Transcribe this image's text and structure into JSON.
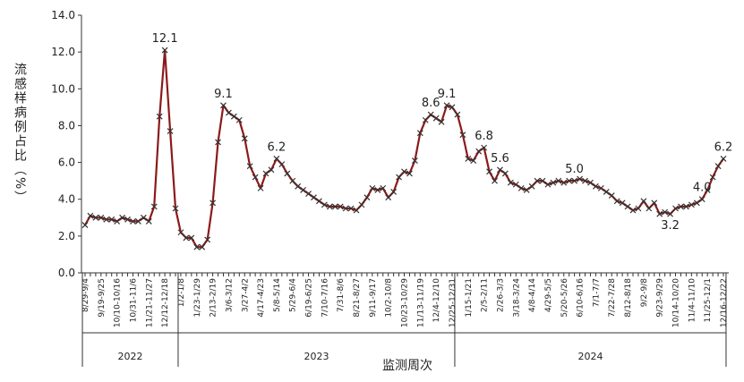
{
  "chart_data": {
    "type": "line",
    "y_label": "流感样病例占比（%）",
    "x_label": "监测周次",
    "ylim": [
      0,
      14
    ],
    "yticks": [
      {
        "value": 0,
        "label": "0.0"
      },
      {
        "value": 2,
        "label": "2.0"
      },
      {
        "value": 4,
        "label": "4.0"
      },
      {
        "value": 6,
        "label": "6.0"
      },
      {
        "value": 8,
        "label": "8.0"
      },
      {
        "value": 10,
        "label": "10.0"
      },
      {
        "value": 12,
        "label": "12.0"
      },
      {
        "value": 14,
        "label": "14.0"
      }
    ],
    "categories": [
      "8/29-9/4",
      null,
      null,
      "9/19-9/25",
      null,
      null,
      "10/10-10/16",
      null,
      null,
      "10/31-11/6",
      null,
      null,
      "11/21-11/27",
      null,
      null,
      "12/12-12/18",
      null,
      null,
      "1/2-1/8",
      null,
      null,
      "1/23-1/29",
      null,
      null,
      "2/13-2/19",
      null,
      null,
      "3/6-3/12",
      null,
      null,
      "3/27-4/2",
      null,
      null,
      "4/17-4/23",
      null,
      null,
      "5/8-5/14",
      null,
      null,
      "5/29-6/4",
      null,
      null,
      "6/19-6/25",
      null,
      null,
      "7/10-7/16",
      null,
      null,
      "7/31-8/6",
      null,
      null,
      "8/21-8/27",
      null,
      null,
      "9/11-9/17",
      null,
      null,
      "10/2-10/8",
      null,
      null,
      "10/23-10/29",
      null,
      null,
      "11/13-11/19",
      null,
      null,
      "12/4-12/10",
      null,
      null,
      "12/25-12/31",
      null,
      null,
      "1/15-1/21",
      null,
      null,
      "2/5-2/11",
      null,
      null,
      "2/26-3/3",
      null,
      null,
      "3/18-3/24",
      null,
      null,
      "4/8-4/14",
      null,
      null,
      "4/29-5/5",
      null,
      null,
      "5/20-5/26",
      null,
      null,
      "6/10-6/16",
      null,
      null,
      "7/1-7/7",
      null,
      null,
      "7/22-7/28",
      null,
      null,
      "8/12-8/18",
      null,
      null,
      "9/2-9/8",
      null,
      null,
      "9/23-9/29",
      null,
      null,
      "10/14-10/20",
      null,
      null,
      "11/4-11/10",
      null,
      null,
      "11/25-12/1",
      null,
      null,
      "12/16-12/22"
    ],
    "year_groups": [
      {
        "label": "2022",
        "weeks": 18
      },
      {
        "label": "2023",
        "weeks": 52
      },
      {
        "label": "2024",
        "weeks": 51
      }
    ],
    "series": [
      {
        "name": "流感样病例占比",
        "color": "#8b1a1a",
        "marker_color": "#333333",
        "values": [
          2.6,
          3.1,
          3.0,
          3.0,
          2.9,
          2.9,
          2.8,
          3.0,
          2.9,
          2.8,
          2.8,
          3.0,
          2.8,
          3.6,
          8.5,
          12.1,
          7.7,
          3.5,
          2.2,
          1.9,
          1.9,
          1.4,
          1.4,
          1.8,
          3.8,
          7.1,
          9.1,
          8.7,
          8.5,
          8.3,
          7.3,
          5.8,
          5.2,
          4.6,
          5.4,
          5.6,
          6.2,
          5.9,
          5.4,
          5.0,
          4.7,
          4.5,
          4.3,
          4.1,
          3.9,
          3.7,
          3.6,
          3.6,
          3.6,
          3.5,
          3.5,
          3.4,
          3.7,
          4.1,
          4.6,
          4.5,
          4.6,
          4.1,
          4.4,
          5.2,
          5.5,
          5.4,
          6.1,
          7.6,
          8.3,
          8.6,
          8.4,
          8.2,
          9.1,
          9.0,
          8.6,
          7.5,
          6.2,
          6.1,
          6.6,
          6.8,
          5.5,
          5.0,
          5.6,
          5.4,
          4.9,
          4.8,
          4.6,
          4.5,
          4.7,
          5.0,
          5.0,
          4.8,
          4.9,
          5.0,
          4.9,
          5.0,
          5.0,
          5.1,
          5.0,
          4.9,
          4.7,
          4.6,
          4.4,
          4.2,
          3.9,
          3.8,
          3.6,
          3.4,
          3.5,
          3.9,
          3.5,
          3.8,
          3.2,
          3.3,
          3.2,
          3.5,
          3.6,
          3.6,
          3.7,
          3.8,
          4.0,
          4.5,
          5.2,
          5.8,
          6.2
        ],
        "value_labels": [
          null,
          null,
          null,
          null,
          null,
          null,
          null,
          null,
          null,
          null,
          null,
          null,
          null,
          null,
          null,
          "12.1",
          null,
          null,
          null,
          null,
          null,
          null,
          null,
          null,
          null,
          null,
          "9.1",
          null,
          null,
          null,
          null,
          null,
          null,
          null,
          null,
          null,
          "6.2",
          null,
          null,
          null,
          null,
          null,
          null,
          null,
          null,
          null,
          null,
          null,
          null,
          null,
          null,
          null,
          null,
          null,
          null,
          null,
          null,
          null,
          null,
          null,
          null,
          null,
          null,
          null,
          null,
          "8.6",
          null,
          null,
          "9.1",
          null,
          null,
          null,
          null,
          null,
          null,
          "6.8",
          null,
          null,
          "5.6",
          null,
          null,
          null,
          null,
          null,
          null,
          null,
          null,
          null,
          null,
          null,
          null,
          null,
          "5.0",
          null,
          null,
          null,
          null,
          null,
          null,
          null,
          null,
          null,
          null,
          null,
          null,
          null,
          null,
          null,
          null,
          null,
          "3.2",
          null,
          null,
          null,
          null,
          null,
          "4.0",
          null,
          null,
          null,
          "6.2"
        ]
      }
    ]
  }
}
